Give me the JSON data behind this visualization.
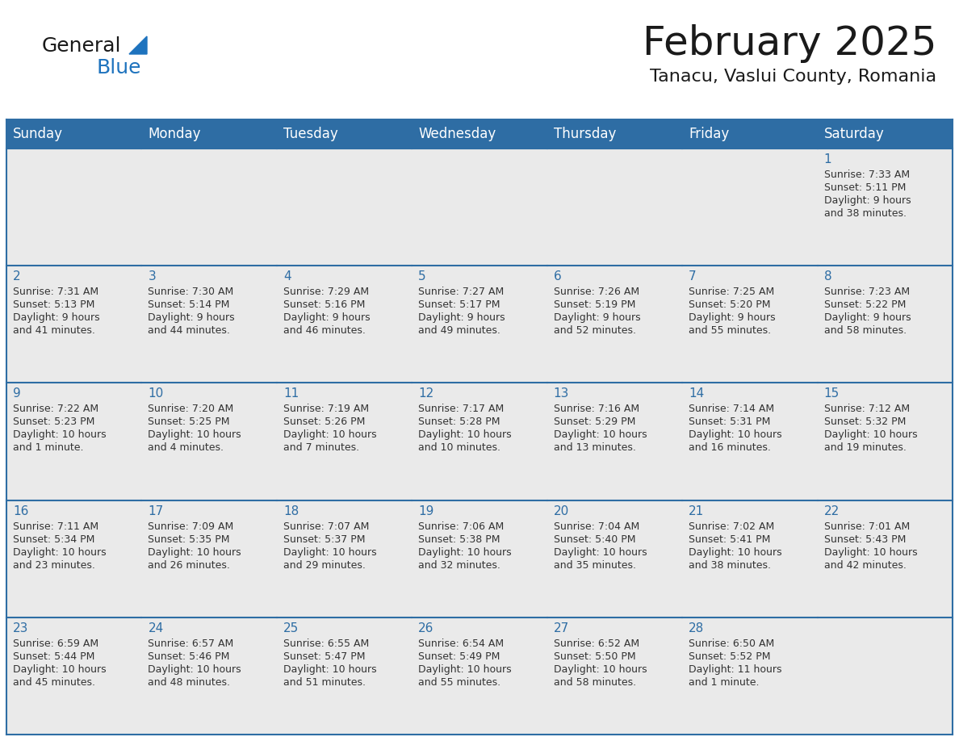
{
  "title": "February 2025",
  "subtitle": "Tanacu, Vaslui County, Romania",
  "header_bg": "#2E6DA4",
  "header_text_color": "#FFFFFF",
  "grid_line_color": "#2E6DA4",
  "day_number_color": "#2E6DA4",
  "cell_bg_light": "#EAEAEA",
  "cell_bg_white": "#FFFFFF",
  "text_color": "#333333",
  "days_of_week": [
    "Sunday",
    "Monday",
    "Tuesday",
    "Wednesday",
    "Thursday",
    "Friday",
    "Saturday"
  ],
  "calendar_data": [
    [
      {
        "day": null,
        "info": null
      },
      {
        "day": null,
        "info": null
      },
      {
        "day": null,
        "info": null
      },
      {
        "day": null,
        "info": null
      },
      {
        "day": null,
        "info": null
      },
      {
        "day": null,
        "info": null
      },
      {
        "day": 1,
        "info": "Sunrise: 7:33 AM\nSunset: 5:11 PM\nDaylight: 9 hours\nand 38 minutes."
      }
    ],
    [
      {
        "day": 2,
        "info": "Sunrise: 7:31 AM\nSunset: 5:13 PM\nDaylight: 9 hours\nand 41 minutes."
      },
      {
        "day": 3,
        "info": "Sunrise: 7:30 AM\nSunset: 5:14 PM\nDaylight: 9 hours\nand 44 minutes."
      },
      {
        "day": 4,
        "info": "Sunrise: 7:29 AM\nSunset: 5:16 PM\nDaylight: 9 hours\nand 46 minutes."
      },
      {
        "day": 5,
        "info": "Sunrise: 7:27 AM\nSunset: 5:17 PM\nDaylight: 9 hours\nand 49 minutes."
      },
      {
        "day": 6,
        "info": "Sunrise: 7:26 AM\nSunset: 5:19 PM\nDaylight: 9 hours\nand 52 minutes."
      },
      {
        "day": 7,
        "info": "Sunrise: 7:25 AM\nSunset: 5:20 PM\nDaylight: 9 hours\nand 55 minutes."
      },
      {
        "day": 8,
        "info": "Sunrise: 7:23 AM\nSunset: 5:22 PM\nDaylight: 9 hours\nand 58 minutes."
      }
    ],
    [
      {
        "day": 9,
        "info": "Sunrise: 7:22 AM\nSunset: 5:23 PM\nDaylight: 10 hours\nand 1 minute."
      },
      {
        "day": 10,
        "info": "Sunrise: 7:20 AM\nSunset: 5:25 PM\nDaylight: 10 hours\nand 4 minutes."
      },
      {
        "day": 11,
        "info": "Sunrise: 7:19 AM\nSunset: 5:26 PM\nDaylight: 10 hours\nand 7 minutes."
      },
      {
        "day": 12,
        "info": "Sunrise: 7:17 AM\nSunset: 5:28 PM\nDaylight: 10 hours\nand 10 minutes."
      },
      {
        "day": 13,
        "info": "Sunrise: 7:16 AM\nSunset: 5:29 PM\nDaylight: 10 hours\nand 13 minutes."
      },
      {
        "day": 14,
        "info": "Sunrise: 7:14 AM\nSunset: 5:31 PM\nDaylight: 10 hours\nand 16 minutes."
      },
      {
        "day": 15,
        "info": "Sunrise: 7:12 AM\nSunset: 5:32 PM\nDaylight: 10 hours\nand 19 minutes."
      }
    ],
    [
      {
        "day": 16,
        "info": "Sunrise: 7:11 AM\nSunset: 5:34 PM\nDaylight: 10 hours\nand 23 minutes."
      },
      {
        "day": 17,
        "info": "Sunrise: 7:09 AM\nSunset: 5:35 PM\nDaylight: 10 hours\nand 26 minutes."
      },
      {
        "day": 18,
        "info": "Sunrise: 7:07 AM\nSunset: 5:37 PM\nDaylight: 10 hours\nand 29 minutes."
      },
      {
        "day": 19,
        "info": "Sunrise: 7:06 AM\nSunset: 5:38 PM\nDaylight: 10 hours\nand 32 minutes."
      },
      {
        "day": 20,
        "info": "Sunrise: 7:04 AM\nSunset: 5:40 PM\nDaylight: 10 hours\nand 35 minutes."
      },
      {
        "day": 21,
        "info": "Sunrise: 7:02 AM\nSunset: 5:41 PM\nDaylight: 10 hours\nand 38 minutes."
      },
      {
        "day": 22,
        "info": "Sunrise: 7:01 AM\nSunset: 5:43 PM\nDaylight: 10 hours\nand 42 minutes."
      }
    ],
    [
      {
        "day": 23,
        "info": "Sunrise: 6:59 AM\nSunset: 5:44 PM\nDaylight: 10 hours\nand 45 minutes."
      },
      {
        "day": 24,
        "info": "Sunrise: 6:57 AM\nSunset: 5:46 PM\nDaylight: 10 hours\nand 48 minutes."
      },
      {
        "day": 25,
        "info": "Sunrise: 6:55 AM\nSunset: 5:47 PM\nDaylight: 10 hours\nand 51 minutes."
      },
      {
        "day": 26,
        "info": "Sunrise: 6:54 AM\nSunset: 5:49 PM\nDaylight: 10 hours\nand 55 minutes."
      },
      {
        "day": 27,
        "info": "Sunrise: 6:52 AM\nSunset: 5:50 PM\nDaylight: 10 hours\nand 58 minutes."
      },
      {
        "day": 28,
        "info": "Sunrise: 6:50 AM\nSunset: 5:52 PM\nDaylight: 11 hours\nand 1 minute."
      },
      {
        "day": null,
        "info": null
      }
    ]
  ],
  "logo_color_general": "#1a1a1a",
  "logo_color_blue": "#1E73BE",
  "logo_triangle_color": "#1E73BE",
  "title_fontsize": 36,
  "subtitle_fontsize": 16,
  "header_fontsize": 12,
  "day_num_fontsize": 11,
  "cell_text_fontsize": 9
}
